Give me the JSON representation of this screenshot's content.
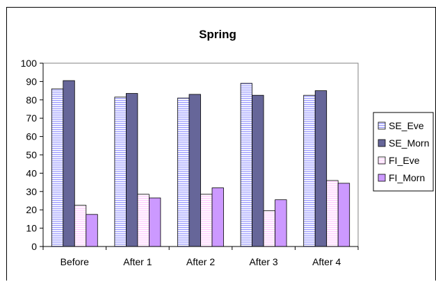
{
  "chart_data": {
    "type": "bar",
    "title": "Spring",
    "xlabel": "",
    "ylabel": "",
    "ylim": [
      0,
      100
    ],
    "yticks": [
      0,
      10,
      20,
      30,
      40,
      50,
      60,
      70,
      80,
      90,
      100
    ],
    "grid": true,
    "legend_position": "right",
    "categories": [
      "Before",
      "After 1",
      "After 2",
      "After 3",
      "After 4"
    ],
    "series": [
      {
        "name": "SE_Eve",
        "values": [
          86,
          81.5,
          81,
          89,
          82.5
        ],
        "color": "#9999ff",
        "pattern": "horizontal-stripes"
      },
      {
        "name": "SE_Morn",
        "values": [
          90.5,
          83.5,
          83,
          82.5,
          85
        ],
        "color": "#666699",
        "pattern": "solid"
      },
      {
        "name": "FI_Eve",
        "values": [
          22.5,
          28.5,
          28.5,
          19.5,
          36
        ],
        "color": "#ffccff",
        "pattern": "horizontal-stripes"
      },
      {
        "name": "FI_Morn",
        "values": [
          17.5,
          26.5,
          32,
          25.5,
          34.5
        ],
        "color": "#cc99ff",
        "pattern": "solid"
      }
    ]
  }
}
